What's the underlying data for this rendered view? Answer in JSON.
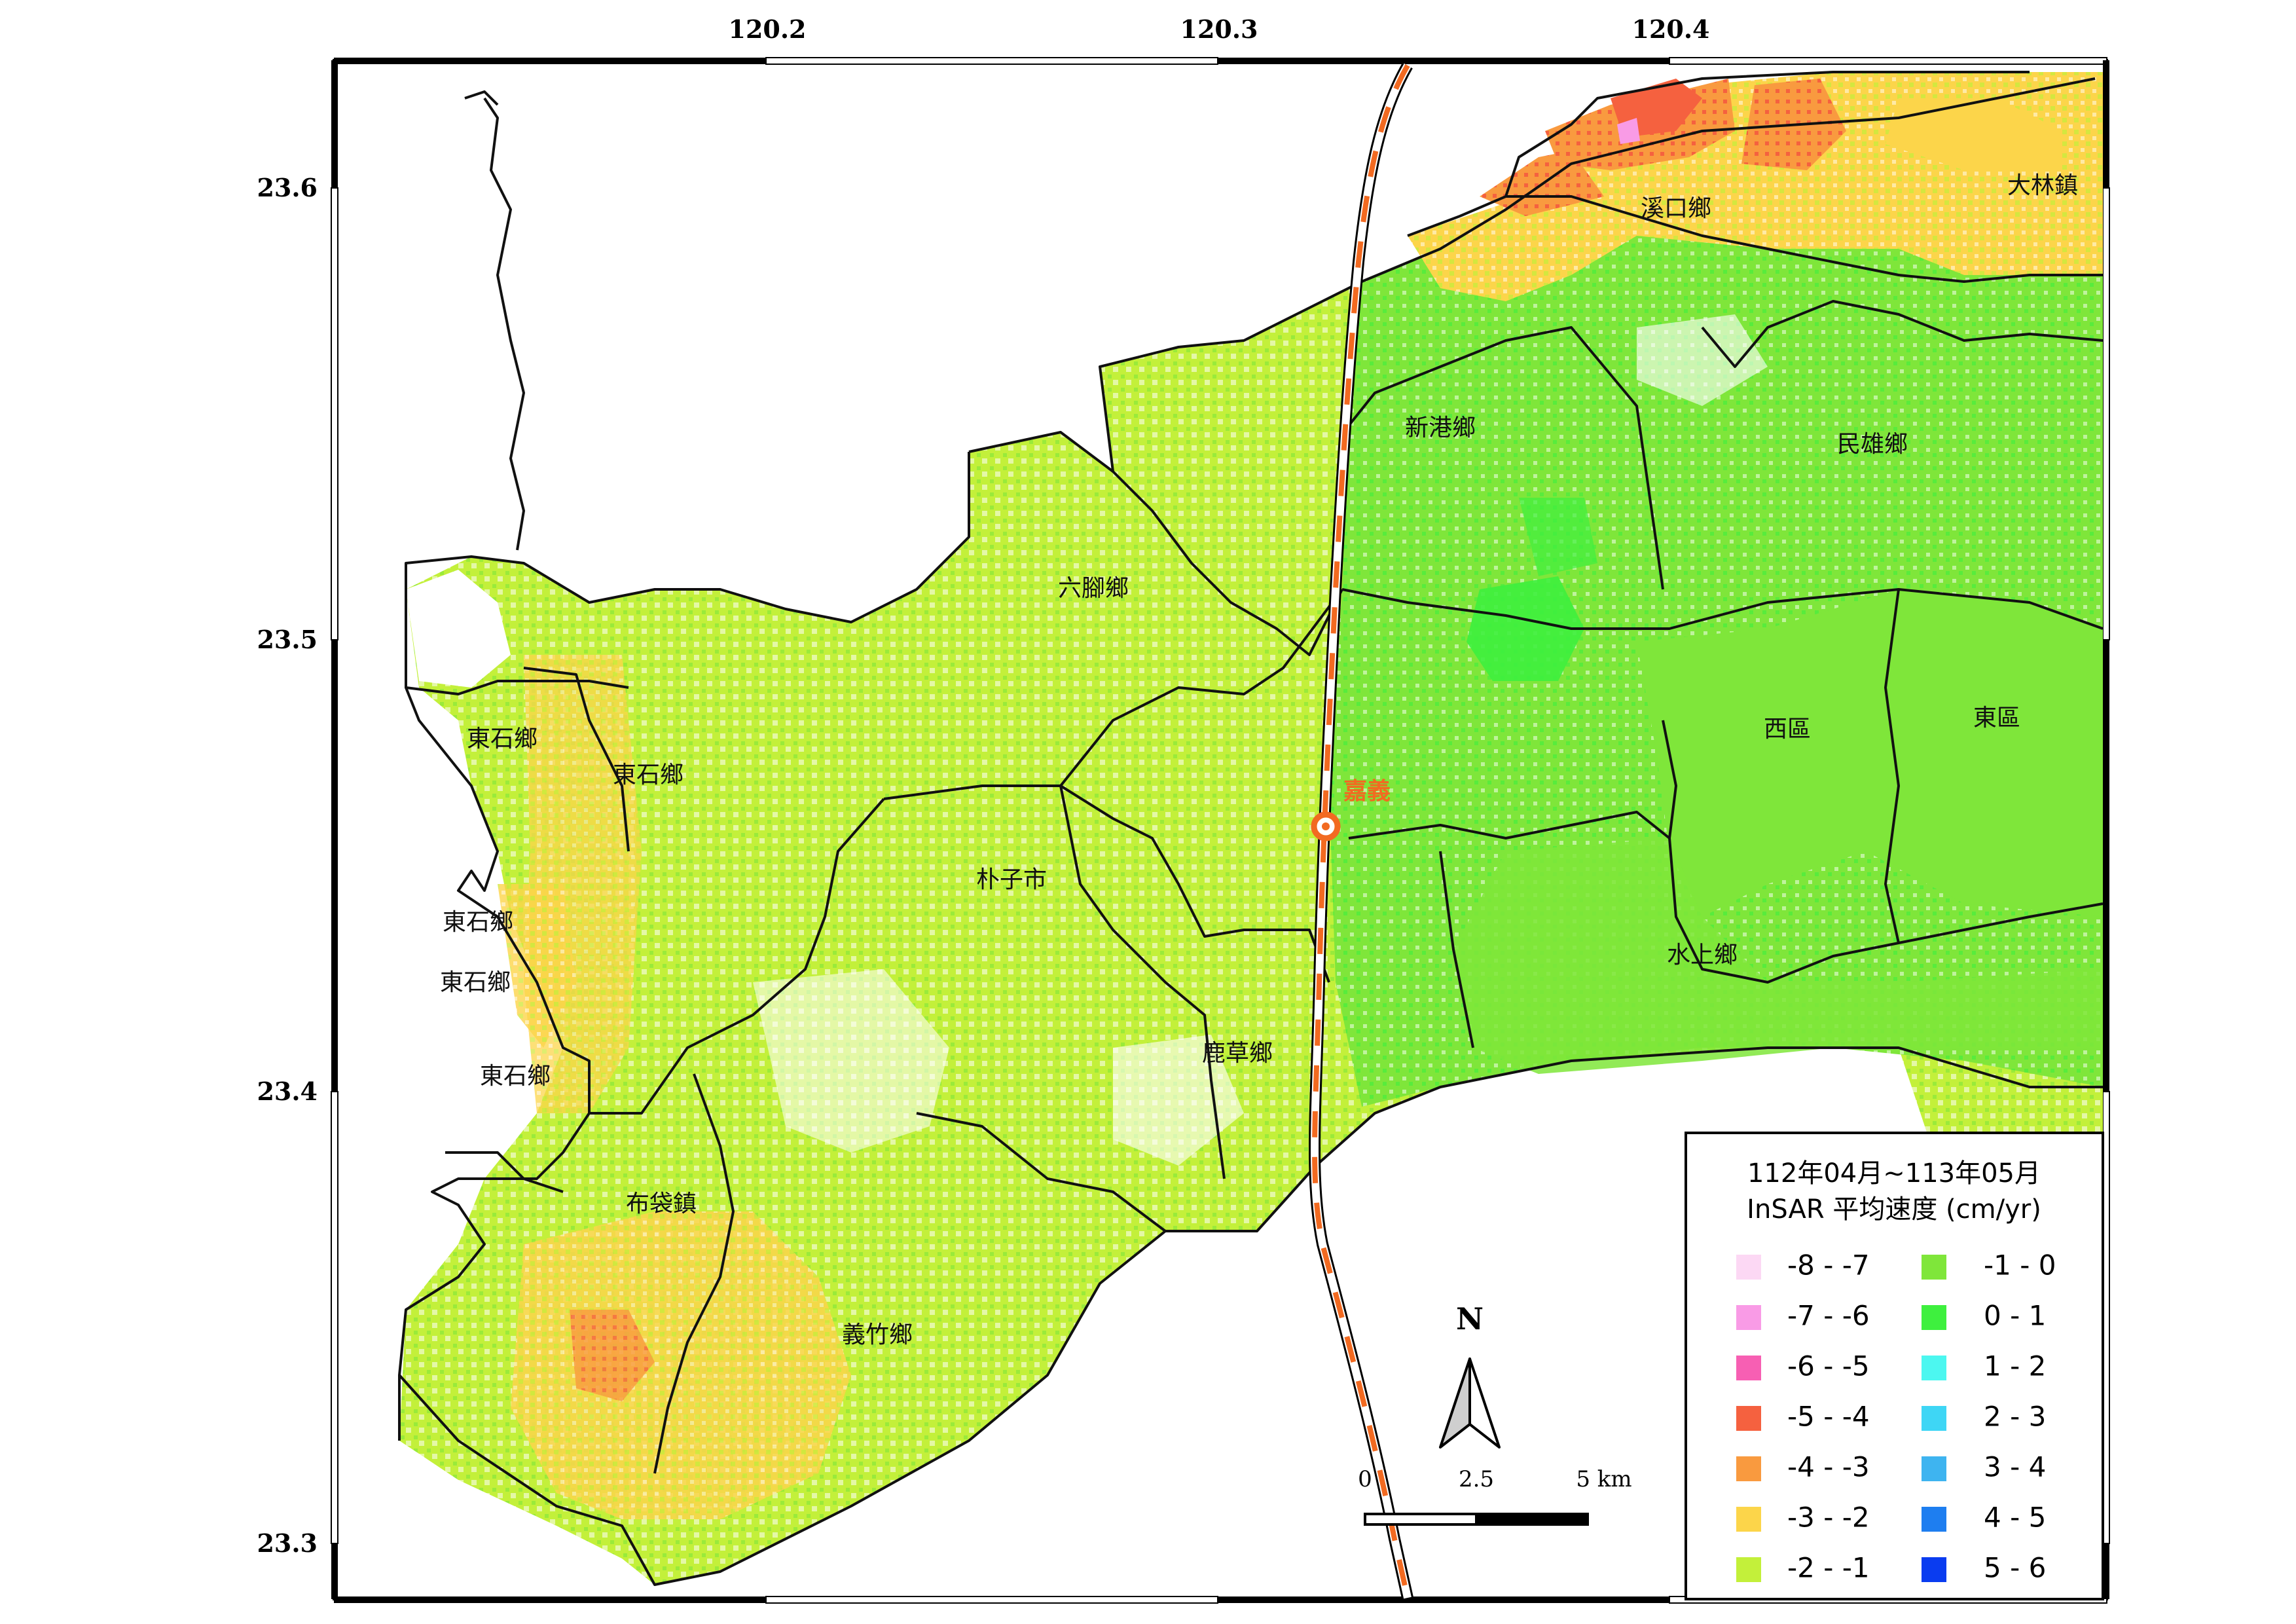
{
  "axes": {
    "lon_ticks": [
      "120.2",
      "120.3",
      "120.4"
    ],
    "lat_ticks": [
      "23.6",
      "23.5",
      "23.4",
      "23.3"
    ]
  },
  "places": [
    {
      "id": "xikou",
      "label": "溪口鄉"
    },
    {
      "id": "dalin",
      "label": "大林鎮"
    },
    {
      "id": "xingang",
      "label": "新港鄉"
    },
    {
      "id": "minxiong",
      "label": "民雄鄉"
    },
    {
      "id": "liujiao",
      "label": "六腳鄉"
    },
    {
      "id": "dongshi1",
      "label": "東石鄉"
    },
    {
      "id": "dongshi2",
      "label": "東石鄉"
    },
    {
      "id": "dongshi3",
      "label": "東石鄉"
    },
    {
      "id": "dongshi4",
      "label": "東石鄉"
    },
    {
      "id": "dongshi5",
      "label": "東石鄉"
    },
    {
      "id": "puzi",
      "label": "朴子市"
    },
    {
      "id": "xiqu",
      "label": "西區"
    },
    {
      "id": "dongqu",
      "label": "東區"
    },
    {
      "id": "shuishang",
      "label": "水上鄉"
    },
    {
      "id": "lucao",
      "label": "鹿草鄉"
    },
    {
      "id": "budai",
      "label": "布袋鎮"
    },
    {
      "id": "yizhu",
      "label": "義竹鄉"
    }
  ],
  "city_marker": {
    "label": "嘉義",
    "color": "#f26a21"
  },
  "north_arrow": {
    "label": "N",
    "icon": "north-arrow-icon"
  },
  "scale_bar": {
    "labels": [
      "0",
      "2.5",
      "5 km"
    ]
  },
  "legend": {
    "title_line1": "112年04月~113年05月",
    "title_line2": "InSAR 平均速度 (cm/yr)",
    "left_items": [
      {
        "label": "-8 - -7",
        "color": "#fcd8f4"
      },
      {
        "label": "-7 - -6",
        "color": "#f99be6"
      },
      {
        "label": "-6 - -5",
        "color": "#f75fb3"
      },
      {
        "label": "-5 - -4",
        "color": "#f5613f"
      },
      {
        "label": "-4 - -3",
        "color": "#f99a3f"
      },
      {
        "label": "-3 - -2",
        "color": "#fcd54a"
      },
      {
        "label": "-2 - -1",
        "color": "#c3f03a"
      }
    ],
    "right_items": [
      {
        "label": "-1 - 0",
        "color": "#7fe63a"
      },
      {
        "label": "0 - 1",
        "color": "#3ef03e"
      },
      {
        "label": "1 - 2",
        "color": "#4cf7f0"
      },
      {
        "label": "2 - 3",
        "color": "#3ed6f5"
      },
      {
        "label": "3 - 4",
        "color": "#3eb4f0"
      },
      {
        "label": "4 - 5",
        "color": "#1e7ef0"
      },
      {
        "label": "5 - 6",
        "color": "#0a3cf0"
      }
    ]
  },
  "colors": {
    "rail": "#f26a21",
    "boundary": "#111111"
  }
}
